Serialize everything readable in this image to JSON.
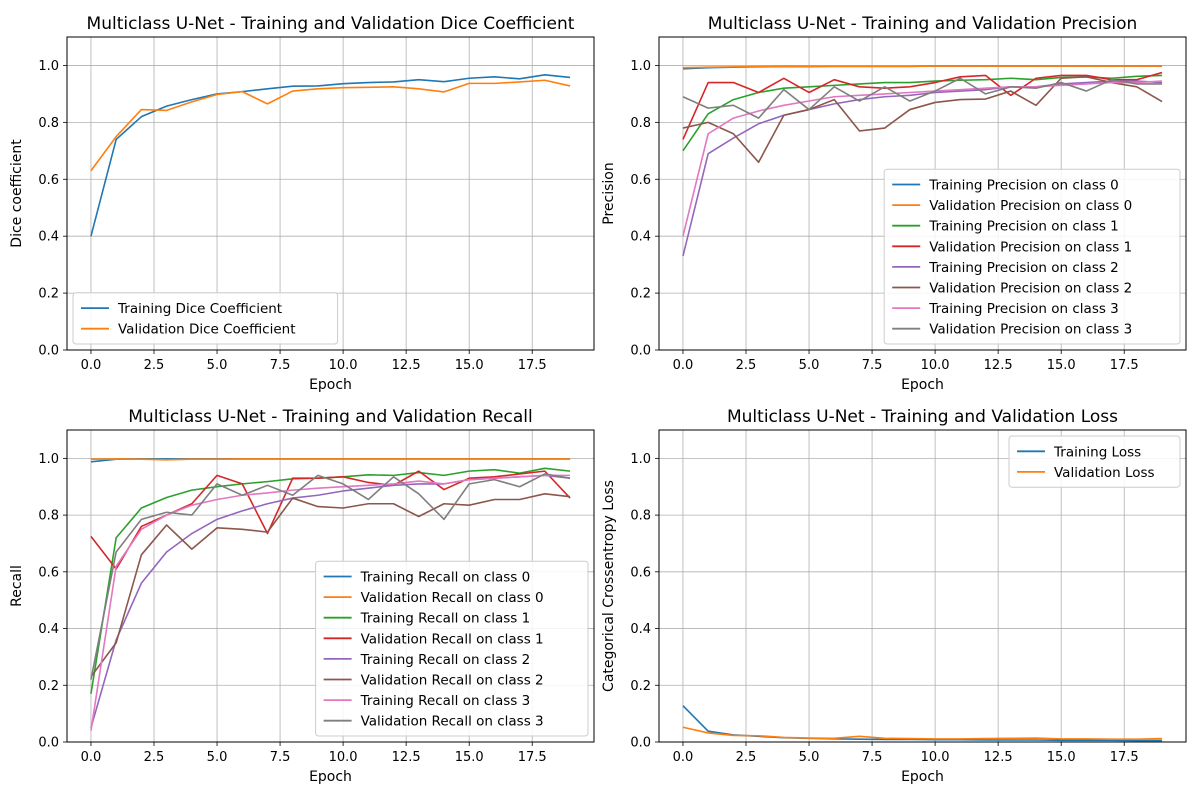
{
  "chart_data": [
    {
      "type": "line",
      "title": "Multiclass U-Net - Training and Validation Dice Coefficient",
      "xlabel": "Epoch",
      "ylabel": "Dice coefficient",
      "xlim": [
        -0.95,
        19.95
      ],
      "ylim": [
        0,
        1.1
      ],
      "xticks": [
        0,
        2.5,
        5,
        7.5,
        10,
        12.5,
        15,
        17.5
      ],
      "xtick_labels": [
        "0.0",
        "2.5",
        "5.0",
        "7.5",
        "10.0",
        "12.5",
        "15.0",
        "17.5"
      ],
      "yticks": [
        0,
        0.2,
        0.4,
        0.6,
        0.8,
        1.0
      ],
      "ytick_labels": [
        "0.0",
        "0.2",
        "0.4",
        "0.6",
        "0.8",
        "1.0"
      ],
      "grid": true,
      "legend_position": "lower-left",
      "x": [
        0,
        1,
        2,
        3,
        4,
        5,
        6,
        7,
        8,
        9,
        10,
        11,
        12,
        13,
        14,
        15,
        16,
        17,
        18,
        19
      ],
      "series": [
        {
          "name": "Training Dice Coefficient",
          "color": "#1f77b4",
          "values": [
            0.4,
            0.74,
            0.82,
            0.857,
            0.88,
            0.9,
            0.908,
            0.918,
            0.927,
            0.928,
            0.936,
            0.94,
            0.942,
            0.95,
            0.943,
            0.955,
            0.96,
            0.953,
            0.967,
            0.958
          ]
        },
        {
          "name": "Validation Dice Coefficient",
          "color": "#ff7f0e",
          "values": [
            0.63,
            0.75,
            0.845,
            0.842,
            0.872,
            0.898,
            0.908,
            0.865,
            0.91,
            0.918,
            0.922,
            0.923,
            0.925,
            0.918,
            0.907,
            0.937,
            0.937,
            0.942,
            0.948,
            0.928
          ]
        }
      ]
    },
    {
      "type": "line",
      "title": "Multiclass U-Net - Training and Validation Precision",
      "xlabel": "Epoch",
      "ylabel": "Precision",
      "xlim": [
        -0.95,
        19.95
      ],
      "ylim": [
        0,
        1.1
      ],
      "xticks": [
        0,
        2.5,
        5,
        7.5,
        10,
        12.5,
        15,
        17.5
      ],
      "xtick_labels": [
        "0.0",
        "2.5",
        "5.0",
        "7.5",
        "10.0",
        "12.5",
        "15.0",
        "17.5"
      ],
      "yticks": [
        0,
        0.2,
        0.4,
        0.6,
        0.8,
        1.0
      ],
      "ytick_labels": [
        "0.0",
        "0.2",
        "0.4",
        "0.6",
        "0.8",
        "1.0"
      ],
      "grid": true,
      "legend_position": "lower-right",
      "x": [
        0,
        1,
        2,
        3,
        4,
        5,
        6,
        7,
        8,
        9,
        10,
        11,
        12,
        13,
        14,
        15,
        16,
        17,
        18,
        19
      ],
      "series": [
        {
          "name": "Training Precision on class 0",
          "color": "#1f77b4",
          "values": [
            0.988,
            0.992,
            0.994,
            0.995,
            0.996,
            0.996,
            0.997,
            0.997,
            0.997,
            0.997,
            0.998,
            0.998,
            0.998,
            0.998,
            0.998,
            0.998,
            0.998,
            0.998,
            0.998,
            0.998
          ]
        },
        {
          "name": "Validation Precision on class 0",
          "color": "#ff7f0e",
          "values": [
            0.992,
            0.994,
            0.995,
            0.996,
            0.996,
            0.997,
            0.997,
            0.997,
            0.997,
            0.997,
            0.998,
            0.998,
            0.998,
            0.998,
            0.998,
            0.998,
            0.998,
            0.998,
            0.998,
            0.998
          ]
        },
        {
          "name": "Training Precision on class 1",
          "color": "#2ca02c",
          "values": [
            0.7,
            0.83,
            0.88,
            0.905,
            0.92,
            0.925,
            0.93,
            0.935,
            0.94,
            0.94,
            0.945,
            0.948,
            0.95,
            0.955,
            0.95,
            0.958,
            0.96,
            0.955,
            0.962,
            0.965
          ]
        },
        {
          "name": "Validation Precision on class 1",
          "color": "#d62728",
          "values": [
            0.74,
            0.94,
            0.94,
            0.905,
            0.955,
            0.905,
            0.95,
            0.925,
            0.92,
            0.925,
            0.94,
            0.96,
            0.965,
            0.895,
            0.955,
            0.965,
            0.965,
            0.95,
            0.95,
            0.975
          ]
        },
        {
          "name": "Training Precision on class 2",
          "color": "#9467bd",
          "values": [
            0.33,
            0.69,
            0.745,
            0.795,
            0.825,
            0.845,
            0.865,
            0.88,
            0.89,
            0.895,
            0.905,
            0.91,
            0.915,
            0.925,
            0.925,
            0.935,
            0.94,
            0.945,
            0.945,
            0.94
          ]
        },
        {
          "name": "Validation Precision on class 2",
          "color": "#8c564b",
          "values": [
            0.78,
            0.8,
            0.76,
            0.66,
            0.825,
            0.845,
            0.88,
            0.77,
            0.78,
            0.845,
            0.87,
            0.88,
            0.882,
            0.91,
            0.86,
            0.955,
            0.96,
            0.94,
            0.925,
            0.873
          ]
        },
        {
          "name": "Training Precision on class 3",
          "color": "#e377c2",
          "values": [
            0.4,
            0.76,
            0.815,
            0.84,
            0.86,
            0.875,
            0.89,
            0.895,
            0.9,
            0.905,
            0.91,
            0.915,
            0.92,
            0.925,
            0.925,
            0.93,
            0.935,
            0.94,
            0.94,
            0.945
          ]
        },
        {
          "name": "Validation Precision on class 3",
          "color": "#7f7f7f",
          "values": [
            0.89,
            0.85,
            0.86,
            0.815,
            0.915,
            0.845,
            0.925,
            0.875,
            0.925,
            0.875,
            0.91,
            0.955,
            0.9,
            0.925,
            0.92,
            0.94,
            0.91,
            0.95,
            0.935,
            0.935
          ]
        }
      ]
    },
    {
      "type": "line",
      "title": "Multiclass U-Net - Training and Validation Recall",
      "xlabel": "Epoch",
      "ylabel": "Recall",
      "xlim": [
        -0.95,
        19.95
      ],
      "ylim": [
        0,
        1.1
      ],
      "xticks": [
        0,
        2.5,
        5,
        7.5,
        10,
        12.5,
        15,
        17.5
      ],
      "xtick_labels": [
        "0.0",
        "2.5",
        "5.0",
        "7.5",
        "10.0",
        "12.5",
        "15.0",
        "17.5"
      ],
      "yticks": [
        0,
        0.2,
        0.4,
        0.6,
        0.8,
        1.0
      ],
      "ytick_labels": [
        "0.0",
        "0.2",
        "0.4",
        "0.6",
        "0.8",
        "1.0"
      ],
      "grid": true,
      "legend_position": "lower-right",
      "x": [
        0,
        1,
        2,
        3,
        4,
        5,
        6,
        7,
        8,
        9,
        10,
        11,
        12,
        13,
        14,
        15,
        16,
        17,
        18,
        19
      ],
      "series": [
        {
          "name": "Training Recall on class 0",
          "color": "#1f77b4",
          "values": [
            0.988,
            0.997,
            0.998,
            0.998,
            0.998,
            0.998,
            0.998,
            0.998,
            0.998,
            0.998,
            0.998,
            0.998,
            0.998,
            0.998,
            0.998,
            0.998,
            0.998,
            0.998,
            0.998,
            0.998
          ]
        },
        {
          "name": "Validation Recall on class 0",
          "color": "#ff7f0e",
          "values": [
            0.997,
            0.998,
            0.997,
            0.995,
            0.997,
            0.997,
            0.998,
            0.998,
            0.998,
            0.998,
            0.998,
            0.998,
            0.998,
            0.998,
            0.998,
            0.998,
            0.998,
            0.998,
            0.998,
            0.998
          ]
        },
        {
          "name": "Training Recall on class 1",
          "color": "#2ca02c",
          "values": [
            0.17,
            0.72,
            0.825,
            0.862,
            0.888,
            0.9,
            0.91,
            0.918,
            0.928,
            0.93,
            0.935,
            0.942,
            0.94,
            0.95,
            0.94,
            0.955,
            0.96,
            0.948,
            0.965,
            0.955
          ]
        },
        {
          "name": "Validation Recall on class 1",
          "color": "#d62728",
          "values": [
            0.725,
            0.61,
            0.76,
            0.8,
            0.84,
            0.94,
            0.91,
            0.735,
            0.93,
            0.93,
            0.935,
            0.915,
            0.905,
            0.955,
            0.89,
            0.93,
            0.935,
            0.945,
            0.955,
            0.86
          ]
        },
        {
          "name": "Training Recall on class 2",
          "color": "#9467bd",
          "values": [
            0.05,
            0.36,
            0.56,
            0.67,
            0.735,
            0.785,
            0.815,
            0.84,
            0.86,
            0.87,
            0.885,
            0.895,
            0.905,
            0.91,
            0.91,
            0.925,
            0.93,
            0.935,
            0.94,
            0.93
          ]
        },
        {
          "name": "Validation Recall on class 2",
          "color": "#8c564b",
          "values": [
            0.23,
            0.35,
            0.66,
            0.765,
            0.68,
            0.755,
            0.75,
            0.74,
            0.86,
            0.83,
            0.825,
            0.84,
            0.84,
            0.795,
            0.84,
            0.835,
            0.855,
            0.855,
            0.875,
            0.865
          ]
        },
        {
          "name": "Training Recall on class 3",
          "color": "#e377c2",
          "values": [
            0.04,
            0.62,
            0.75,
            0.8,
            0.835,
            0.855,
            0.87,
            0.878,
            0.888,
            0.895,
            0.9,
            0.905,
            0.91,
            0.92,
            0.91,
            0.925,
            0.93,
            0.935,
            0.94,
            0.94
          ]
        },
        {
          "name": "Validation Recall on class 3",
          "color": "#7f7f7f",
          "values": [
            0.22,
            0.67,
            0.785,
            0.81,
            0.8,
            0.91,
            0.87,
            0.905,
            0.87,
            0.94,
            0.91,
            0.855,
            0.935,
            0.875,
            0.785,
            0.91,
            0.925,
            0.9,
            0.945,
            0.93
          ]
        }
      ]
    },
    {
      "type": "line",
      "title": "Multiclass U-Net - Training and Validation Loss",
      "xlabel": "Epoch",
      "ylabel": "Categorical Crossentropy Loss",
      "xlim": [
        -0.95,
        19.95
      ],
      "ylim": [
        0,
        1.1
      ],
      "xticks": [
        0,
        2.5,
        5,
        7.5,
        10,
        12.5,
        15,
        17.5
      ],
      "xtick_labels": [
        "0.0",
        "2.5",
        "5.0",
        "7.5",
        "10.0",
        "12.5",
        "15.0",
        "17.5"
      ],
      "yticks": [
        0,
        0.2,
        0.4,
        0.6,
        0.8,
        1.0
      ],
      "ytick_labels": [
        "0.0",
        "0.2",
        "0.4",
        "0.6",
        "0.8",
        "1.0"
      ],
      "grid": true,
      "legend_position": "upper-right",
      "x": [
        0,
        1,
        2,
        3,
        4,
        5,
        6,
        7,
        8,
        9,
        10,
        11,
        12,
        13,
        14,
        15,
        16,
        17,
        18,
        19
      ],
      "series": [
        {
          "name": "Training Loss",
          "color": "#1f77b4",
          "values": [
            0.128,
            0.038,
            0.025,
            0.02,
            0.015,
            0.013,
            0.011,
            0.01,
            0.009,
            0.009,
            0.008,
            0.008,
            0.007,
            0.007,
            0.007,
            0.006,
            0.006,
            0.006,
            0.005,
            0.005
          ]
        },
        {
          "name": "Validation Loss",
          "color": "#ff7f0e",
          "values": [
            0.052,
            0.032,
            0.023,
            0.022,
            0.016,
            0.014,
            0.013,
            0.02,
            0.013,
            0.012,
            0.011,
            0.011,
            0.012,
            0.013,
            0.014,
            0.011,
            0.011,
            0.01,
            0.01,
            0.012
          ]
        }
      ]
    }
  ]
}
